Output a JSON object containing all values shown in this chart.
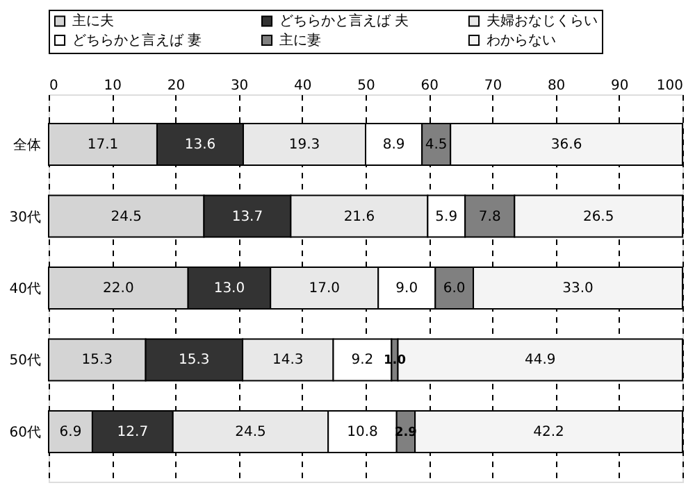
{
  "chart_data": {
    "type": "bar",
    "orientation": "horizontal",
    "stacked": true,
    "legend": "top",
    "grid": "x",
    "categories": [
      "全体",
      "30代",
      "40代",
      "50代",
      "60代"
    ],
    "xlim": [
      0,
      100
    ],
    "xticks": [
      0,
      10,
      20,
      30,
      40,
      50,
      60,
      70,
      80,
      90,
      100
    ],
    "series": [
      {
        "name": "主に夫",
        "color": "#d4d4d4",
        "values": [
          17.1,
          24.5,
          22.0,
          15.3,
          6.9
        ],
        "value_labels": [
          "17.1",
          "24.5",
          "22.0",
          "15.3",
          "6.9"
        ]
      },
      {
        "name": "どちらかと言えば 夫",
        "color": "#333333",
        "values": [
          13.6,
          13.7,
          13.0,
          15.3,
          12.7
        ],
        "value_labels": [
          "13.6",
          "13.7",
          "13.0",
          "15.3",
          "12.7"
        ]
      },
      {
        "name": "夫婦おなじくらい",
        "color": "#e8e8e8",
        "values": [
          19.3,
          21.6,
          17.0,
          14.3,
          24.5
        ],
        "value_labels": [
          "19.3",
          "21.6",
          "17.0",
          "14.3",
          "24.5"
        ]
      },
      {
        "name": "どちらかと言えば 妻",
        "color": "#ffffff",
        "values": [
          8.9,
          5.9,
          9.0,
          9.2,
          10.8
        ],
        "value_labels": [
          "8.9",
          "5.9",
          "9.0",
          "9.2",
          "10.8"
        ]
      },
      {
        "name": "主に妻",
        "color": "#808080",
        "values": [
          4.5,
          7.8,
          6.0,
          1.0,
          2.9
        ],
        "value_labels": [
          "4.5",
          "7.8",
          "6.0",
          "1.0",
          "2.9"
        ]
      },
      {
        "name": "わからない",
        "color": "#f4f4f4",
        "values": [
          36.6,
          26.5,
          33.0,
          44.9,
          42.2
        ],
        "value_labels": [
          "36.6",
          "26.5",
          "33.0",
          "44.9",
          "42.2"
        ]
      }
    ]
  }
}
